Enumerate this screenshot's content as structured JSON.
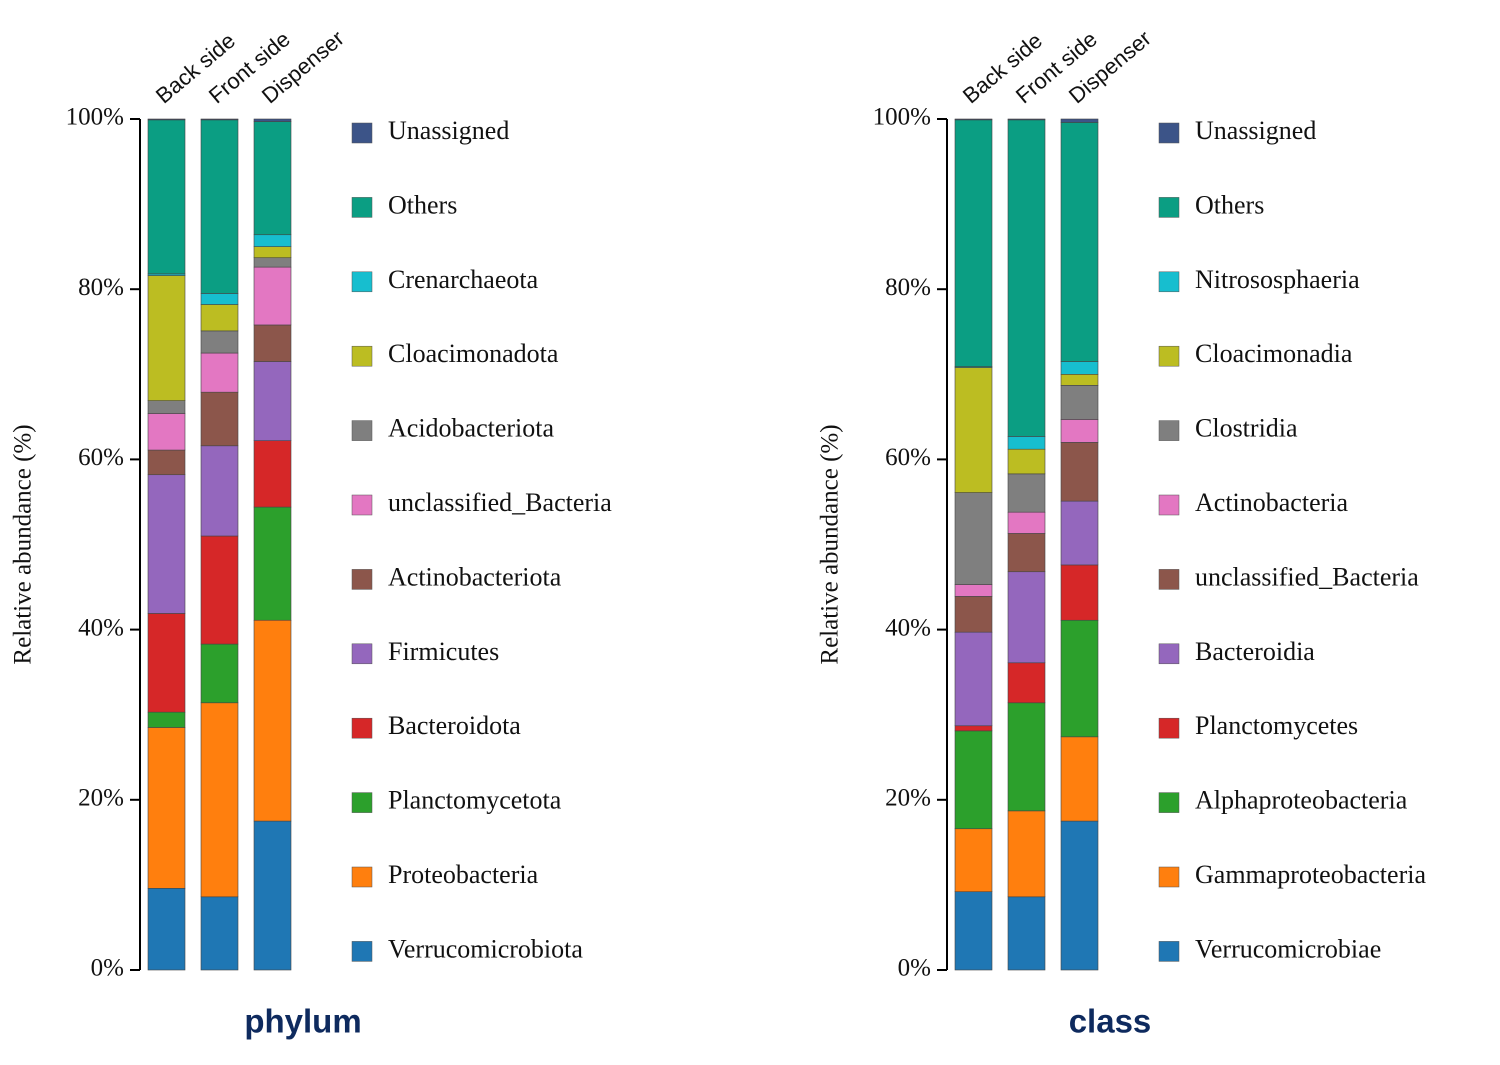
{
  "chart_data": [
    {
      "type": "stacked-bar",
      "title": "phylum",
      "y_label": "Relative abundance (%)",
      "categories": [
        "Back side",
        "Front side",
        "Dispenser"
      ],
      "ylim": [
        0,
        100
      ],
      "yticks": [
        {
          "value": 0,
          "label": "0%"
        },
        {
          "value": 20,
          "label": "20%"
        },
        {
          "value": 40,
          "label": "40%"
        },
        {
          "value": 60,
          "label": "60%"
        },
        {
          "value": 80,
          "label": "80%"
        },
        {
          "value": 100,
          "label": "100%"
        }
      ],
      "series": [
        {
          "name": "Verrucomicrobiota",
          "color": "#1f77b4",
          "values": [
            9.6,
            8.6,
            17.5
          ]
        },
        {
          "name": "Proteobacteria",
          "color": "#ff7f0e",
          "values": [
            18.9,
            22.8,
            23.6
          ]
        },
        {
          "name": "Planctomycetota",
          "color": "#2ca02c",
          "values": [
            1.8,
            6.9,
            13.3
          ]
        },
        {
          "name": "Bacteroidota",
          "color": "#d62728",
          "values": [
            11.6,
            12.7,
            7.8
          ]
        },
        {
          "name": "Firmicutes",
          "color": "#9467bd",
          "values": [
            16.3,
            10.6,
            9.3
          ]
        },
        {
          "name": "Actinobacteriota",
          "color": "#8c564b",
          "values": [
            2.9,
            6.3,
            4.3
          ]
        },
        {
          "name": "unclassified_Bacteria",
          "color": "#e377c2",
          "values": [
            4.3,
            4.6,
            6.8
          ]
        },
        {
          "name": "Acidobacteriota",
          "color": "#7f7f7f",
          "values": [
            1.5,
            2.6,
            1.1
          ]
        },
        {
          "name": "Cloacimonadota",
          "color": "#bcbd22",
          "values": [
            14.7,
            3.1,
            1.3
          ]
        },
        {
          "name": "Crenarchaeota",
          "color": "#17becf",
          "values": [
            0.2,
            1.3,
            1.4
          ]
        },
        {
          "name": "Others",
          "color": "#0b9e83",
          "values": [
            18.1,
            20.4,
            13.3
          ]
        },
        {
          "name": "Unassigned",
          "color": "#3c5488",
          "values": [
            0.1,
            0.1,
            0.3
          ]
        }
      ]
    },
    {
      "type": "stacked-bar",
      "title": "class",
      "y_label": "Relative abundance (%)",
      "categories": [
        "Back side",
        "Front side",
        "Dispenser"
      ],
      "ylim": [
        0,
        100
      ],
      "yticks": [
        {
          "value": 0,
          "label": "0%"
        },
        {
          "value": 20,
          "label": "20%"
        },
        {
          "value": 40,
          "label": "40%"
        },
        {
          "value": 60,
          "label": "60%"
        },
        {
          "value": 80,
          "label": "80%"
        },
        {
          "value": 100,
          "label": "100%"
        }
      ],
      "series": [
        {
          "name": "Verrucomicrobiae",
          "color": "#1f77b4",
          "values": [
            9.2,
            8.6,
            17.5
          ]
        },
        {
          "name": "Gammaproteobacteria",
          "color": "#ff7f0e",
          "values": [
            7.4,
            10.1,
            9.9
          ]
        },
        {
          "name": "Alphaproteobacteria",
          "color": "#2ca02c",
          "values": [
            11.5,
            12.7,
            13.7
          ]
        },
        {
          "name": "Planctomycetes",
          "color": "#d62728",
          "values": [
            0.6,
            4.7,
            6.5
          ]
        },
        {
          "name": "Bacteroidia",
          "color": "#9467bd",
          "values": [
            11.0,
            10.7,
            7.5
          ]
        },
        {
          "name": "unclassified_Bacteria",
          "color": "#8c564b",
          "values": [
            4.2,
            4.5,
            6.9
          ]
        },
        {
          "name": "Actinobacteria",
          "color": "#e377c2",
          "values": [
            1.4,
            2.5,
            2.7
          ]
        },
        {
          "name": "Clostridia",
          "color": "#7f7f7f",
          "values": [
            10.8,
            4.5,
            4.0
          ]
        },
        {
          "name": "Cloacimonadia",
          "color": "#bcbd22",
          "values": [
            14.7,
            2.9,
            1.3
          ]
        },
        {
          "name": "Nitrososphaeria",
          "color": "#17becf",
          "values": [
            0.1,
            1.5,
            1.5
          ]
        },
        {
          "name": "Others",
          "color": "#0b9e83",
          "values": [
            29.0,
            37.2,
            28.1
          ]
        },
        {
          "name": "Unassigned",
          "color": "#3c5488",
          "values": [
            0.1,
            0.1,
            0.4
          ]
        }
      ]
    }
  ]
}
